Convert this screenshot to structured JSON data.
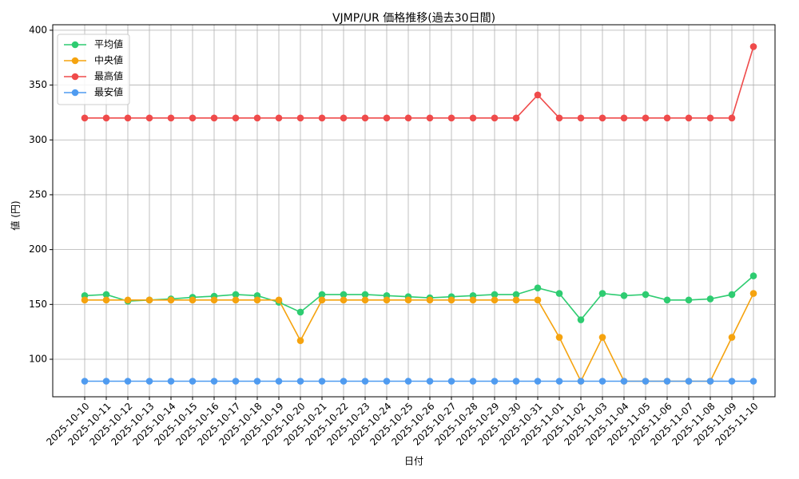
{
  "chart_data": {
    "type": "line",
    "title": "VJMP/UR 価格推移(過去30日間)",
    "x_label": "日付",
    "y_label": "値 (円)",
    "categories": [
      "2025-10-10",
      "2025-10-11",
      "2025-10-12",
      "2025-10-13",
      "2025-10-14",
      "2025-10-15",
      "2025-10-16",
      "2025-10-17",
      "2025-10-18",
      "2025-10-19",
      "2025-10-20",
      "2025-10-21",
      "2025-10-22",
      "2025-10-23",
      "2025-10-24",
      "2025-10-25",
      "2025-10-26",
      "2025-10-27",
      "2025-10-28",
      "2025-10-29",
      "2025-10-30",
      "2025-10-31",
      "2025-11-01",
      "2025-11-02",
      "2025-11-03",
      "2025-11-04",
      "2025-11-05",
      "2025-11-06",
      "2025-11-07",
      "2025-11-08",
      "2025-11-09",
      "2025-11-10"
    ],
    "series": [
      {
        "name": "平均値",
        "color": "#2ecc71",
        "values": [
          158,
          159,
          153,
          154,
          155,
          156.5,
          157.5,
          159,
          158,
          152,
          143,
          159,
          159,
          159,
          158,
          157,
          156,
          157,
          158,
          159,
          159,
          165,
          160,
          136,
          160,
          158,
          159,
          154,
          154,
          155,
          159,
          176
        ]
      },
      {
        "name": "中央値",
        "color": "#f5a30f",
        "values": [
          154,
          154,
          154,
          154,
          154,
          154,
          154,
          154,
          154,
          154,
          117,
          154,
          154,
          154,
          154,
          154,
          154,
          154,
          154,
          154,
          154,
          154,
          120,
          80,
          120,
          80,
          80,
          80,
          80,
          80,
          120,
          160
        ]
      },
      {
        "name": "最高値",
        "color": "#ef4b4b",
        "values": [
          320,
          320,
          320,
          320,
          320,
          320,
          320,
          320,
          320,
          320,
          320,
          320,
          320,
          320,
          320,
          320,
          320,
          320,
          320,
          320,
          320,
          341,
          320,
          320,
          320,
          320,
          320,
          320,
          320,
          320,
          320,
          385
        ]
      },
      {
        "name": "最安値",
        "color": "#4f9bf0",
        "values": [
          80,
          80,
          80,
          80,
          80,
          80,
          80,
          80,
          80,
          80,
          80,
          80,
          80,
          80,
          80,
          80,
          80,
          80,
          80,
          80,
          80,
          80,
          80,
          80,
          80,
          80,
          80,
          80,
          80,
          80,
          80,
          80
        ]
      }
    ],
    "ylim": [
      65.8,
      405
    ],
    "yticks": [
      100,
      150,
      200,
      250,
      300,
      350,
      400
    ],
    "grid": true,
    "legend": "upper left"
  }
}
